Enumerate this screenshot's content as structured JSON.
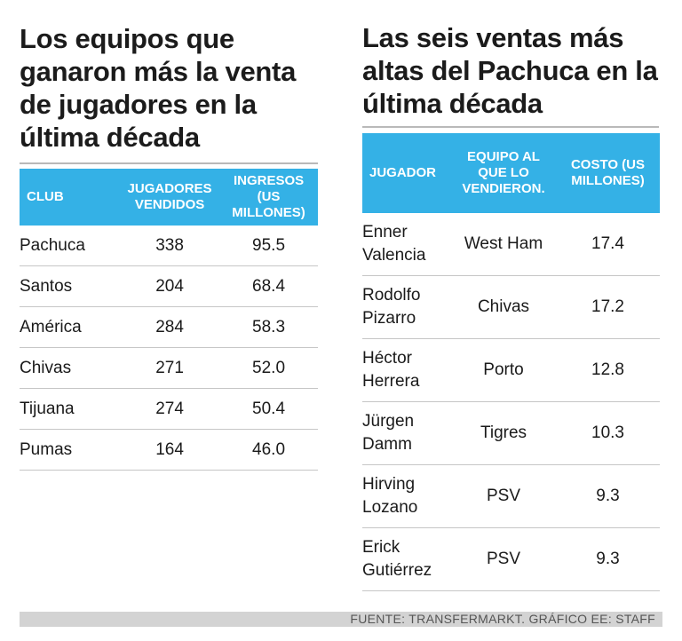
{
  "chart_data": [
    {
      "type": "table",
      "title": "Los equipos que ganaron más la venta de jugadores en la última década",
      "columns": [
        "Club",
        "Jugadores vendidos",
        "Ingresos (US millones)"
      ],
      "rows": [
        {
          "club": "Pachuca",
          "jugadores": "338",
          "ingresos": "95.5"
        },
        {
          "club": "Santos",
          "jugadores": "204",
          "ingresos": "68.4"
        },
        {
          "club": "América",
          "jugadores": "284",
          "ingresos": "58.3"
        },
        {
          "club": "Chivas",
          "jugadores": "271",
          "ingresos": "52.0"
        },
        {
          "club": "Tijuana",
          "jugadores": "274",
          "ingresos": "50.4"
        },
        {
          "club": "Pumas",
          "jugadores": "164",
          "ingresos": "46.0"
        }
      ]
    },
    {
      "type": "table",
      "title": "Las seis ventas más altas del Pachuca en la última década",
      "columns": [
        "Jugador",
        "Equipo al que lo vendieron.",
        "Costo (US millones)"
      ],
      "rows": [
        {
          "first": "Enner",
          "last": "Valencia",
          "equipo": "West Ham",
          "costo": "17.4"
        },
        {
          "first": "Rodolfo",
          "last": "Pizarro",
          "equipo": "Chivas",
          "costo": "17.2"
        },
        {
          "first": "Héctor",
          "last": "Herrera",
          "equipo": "Porto",
          "costo": "12.8"
        },
        {
          "first": "Jürgen",
          "last": "Damm",
          "equipo": "Tigres",
          "costo": "10.3"
        },
        {
          "first": "Hirving",
          "last": "Lozano",
          "equipo": "PSV",
          "costo": "9.3"
        },
        {
          "first": "Erick",
          "last": "Gutiérrez",
          "equipo": "PSV",
          "costo": "9.3"
        }
      ]
    }
  ],
  "left": {
    "title": "Los equipos que ganaron más la venta de jugadores en la última década",
    "headers": {
      "club": "CLUB",
      "jugadores": "JUGADORES VENDIDOS",
      "ingresos": "INGRESOS (US MILLONES)"
    }
  },
  "right": {
    "title": "Las seis ventas más altas del Pachuca en la última década",
    "headers": {
      "jugador": "JUGADOR",
      "equipo": "EQUIPO AL QUE LO VENDIERON.",
      "costo": "COSTO (US MILLONES)"
    }
  },
  "footer": {
    "source": "FUENTE: TRANSFERMARKT. GRÁFICO EE: STAFF"
  },
  "colors": {
    "header_bg": "#34b1e6",
    "header_text": "#ffffff",
    "rule": "#c6c6c6",
    "footer_bg": "#d3d3d3"
  }
}
